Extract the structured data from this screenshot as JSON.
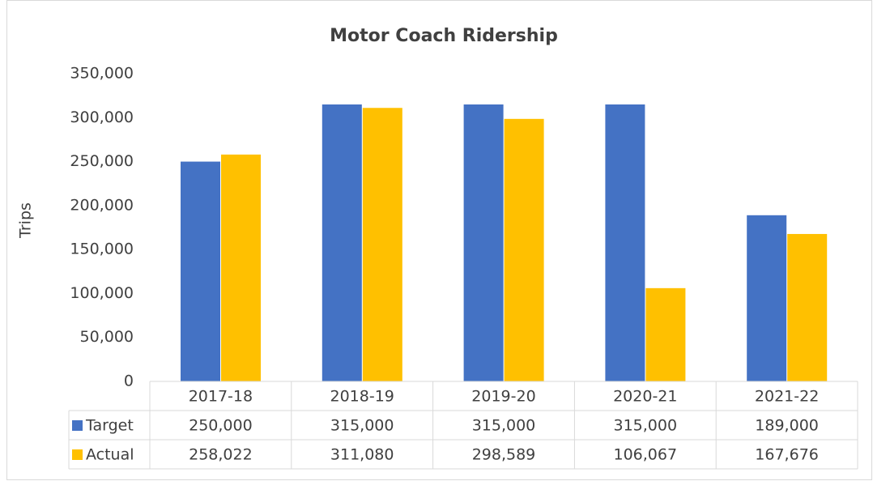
{
  "chart_data": {
    "type": "bar",
    "title": "Motor Coach Ridership",
    "y_label": "Trips",
    "categories": [
      "2017-18",
      "2018-19",
      "2019-20",
      "2020-21",
      "2021-22"
    ],
    "series": [
      {
        "name": "Target",
        "color": "#4472c4",
        "values": [
          250000,
          315000,
          315000,
          315000,
          189000
        ],
        "value_labels": [
          "250,000",
          "315,000",
          "315,000",
          "315,000",
          "189,000"
        ]
      },
      {
        "name": "Actual",
        "color": "#ffc000",
        "values": [
          258022,
          311080,
          298589,
          106067,
          167676
        ],
        "value_labels": [
          "258,022",
          "311,080",
          "298,589",
          "106,067",
          "167,676"
        ]
      }
    ],
    "ylim": [
      0,
      350000
    ],
    "yticks": [
      0,
      {
        "value": 50000,
        "label": "50,000"
      },
      {
        "value": 100000,
        "label": "100,000"
      },
      {
        "value": 150000,
        "label": "150,000"
      },
      {
        "value": 200000,
        "label": "200,000"
      },
      {
        "value": 250000,
        "label": "250,000"
      },
      {
        "value": 300000,
        "label": "300,000"
      },
      {
        "value": 350000,
        "label": "350,000"
      }
    ],
    "grid": false
  }
}
